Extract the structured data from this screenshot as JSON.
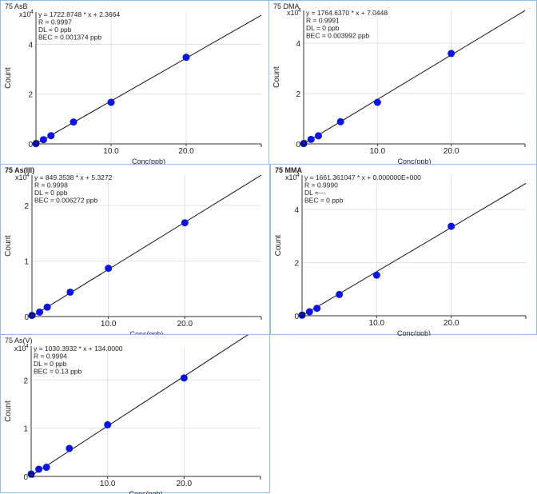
{
  "axis": {
    "xlabel": "Conc(ppb)",
    "ylabel": "Count",
    "multiplier": "x10",
    "exponent": "4"
  },
  "chart_data": [
    {
      "type": "scatter",
      "title": "75  AsB",
      "xlabel": "Conc(ppb)",
      "ylabel": "Count",
      "y_multiplier": 10000,
      "xlim": [
        0,
        30
      ],
      "ylim": [
        0,
        5.3
      ],
      "xticks": [
        "10.0",
        "20.0"
      ],
      "xtick_values": [
        10,
        20
      ],
      "yticks": [
        "0",
        "2",
        "4"
      ],
      "ytick_values": [
        0,
        2,
        4
      ],
      "annotations": [
        "y = 1722.8748 * x  + 2.3664",
        "R =  0.9997",
        "DL = 0 ppb",
        "BEC = 0.001374 ppb"
      ],
      "fit": {
        "slope": 1722.8748,
        "intercept": 2.3664
      },
      "x": [
        0,
        1,
        2,
        5,
        10,
        20
      ],
      "y": [
        0.01,
        0.17,
        0.33,
        0.88,
        1.67,
        3.48
      ]
    },
    {
      "type": "scatter",
      "title": "75  DMA",
      "xlabel": "Conc(ppb)",
      "ylabel": "Count",
      "y_multiplier": 10000,
      "xlim": [
        0,
        30
      ],
      "ylim": [
        0,
        5.3
      ],
      "xticks": [
        "10.0",
        "20.0"
      ],
      "xtick_values": [
        10,
        20
      ],
      "yticks": [
        "0",
        "2",
        "4"
      ],
      "ytick_values": [
        0,
        2,
        4
      ],
      "annotations": [
        "y = 1764.6370 * x  + 7.0448",
        "R =  0.9991",
        "DL = 0 ppb",
        "BEC = 0.003992 ppb"
      ],
      "fit": {
        "slope": 1764.637,
        "intercept": 7.0448
      },
      "x": [
        0,
        1,
        2,
        5,
        10,
        20
      ],
      "y": [
        0.01,
        0.18,
        0.32,
        0.88,
        1.65,
        3.59
      ]
    },
    {
      "type": "scatter",
      "title": "75  As(III)",
      "xlabel": "Conc(ppb)",
      "ylabel": "Count",
      "y_multiplier": 10000,
      "xlim": [
        0,
        30
      ],
      "ylim": [
        0,
        2.55
      ],
      "xticks": [
        "10.0",
        "20.0"
      ],
      "xtick_values": [
        10,
        20
      ],
      "yticks": [
        "0",
        "1",
        "2"
      ],
      "ytick_values": [
        0,
        1,
        2
      ],
      "annotations": [
        "y = 849.3538 * x  + 5.3272",
        "R =  0.9998",
        "DL = 0 ppb",
        "BEC = 0.006272 ppb"
      ],
      "fit": {
        "slope": 849.3538,
        "intercept": 5.3272
      },
      "x": [
        0,
        1,
        2,
        5,
        10,
        20
      ],
      "y": [
        0.02,
        0.08,
        0.17,
        0.44,
        0.87,
        1.69
      ]
    },
    {
      "type": "scatter",
      "title": "75  MMA",
      "xlabel": "Conc(ppb)",
      "ylabel": "Count",
      "y_multiplier": 10000,
      "xlim": [
        0,
        30
      ],
      "ylim": [
        0,
        5.3
      ],
      "xticks": [
        "10.0",
        "20.0"
      ],
      "xtick_values": [
        10,
        20
      ],
      "yticks": [
        "0",
        "2",
        "4"
      ],
      "ytick_values": [
        0,
        2,
        4
      ],
      "annotations": [
        "y = 1661.361047 * x  + 0.000000E+000",
        "R =  0.9990",
        "DL =---",
        "BEC = 0 ppb"
      ],
      "fit": {
        "slope": 1661.361047,
        "intercept": 0
      },
      "x": [
        0,
        1,
        2,
        5,
        10,
        20
      ],
      "y": [
        0.02,
        0.15,
        0.28,
        0.8,
        1.53,
        3.37
      ]
    },
    {
      "type": "scatter",
      "title": "75  As(V)",
      "xlabel": "Conc(ppb)",
      "ylabel": "Count",
      "y_multiplier": 10000,
      "xlim": [
        0,
        30
      ],
      "ylim": [
        0,
        2.7
      ],
      "xticks": [
        "10.0",
        "20.0"
      ],
      "xtick_values": [
        10,
        20
      ],
      "yticks": [
        "0",
        "1",
        "2"
      ],
      "ytick_values": [
        0,
        1,
        2
      ],
      "annotations": [
        "y = 1030.3932 * x  + 134.0000",
        "R =  0.9994",
        "DL = 0 ppb",
        "BEC = 0.13 ppb"
      ],
      "fit": {
        "slope": 1030.3932,
        "intercept": 134
      },
      "x": [
        0,
        1,
        2,
        5,
        10,
        20
      ],
      "y": [
        0.05,
        0.15,
        0.19,
        0.58,
        1.07,
        2.04
      ]
    }
  ],
  "colors": {
    "point": "#0a14e6",
    "line": "#111111",
    "grid": "#e2e2e2",
    "border": "#8fbdf0"
  }
}
